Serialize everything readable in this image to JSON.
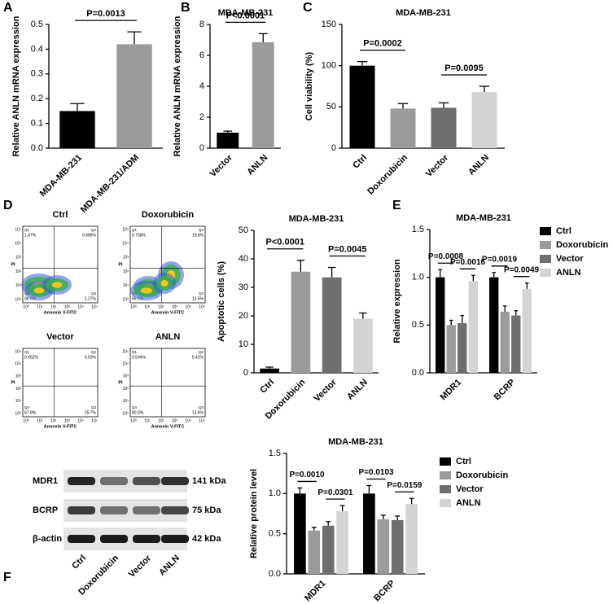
{
  "chart_data": [
    {
      "type": "bar",
      "panel_label": "A",
      "ylabel": "Relative ANLN mRNA expression",
      "categories": [
        "MDA-MB-231",
        "MDA-MB-231/ADM"
      ],
      "values": [
        0.15,
        0.42
      ],
      "errors": [
        0.03,
        0.05
      ],
      "colors": [
        "#000000",
        "#9b9b9b"
      ],
      "ylim": [
        0,
        0.5
      ],
      "yticks": [
        {
          "value": 0,
          "label": "0.0"
        },
        0.1,
        0.2,
        0.3,
        0.4,
        0.5
      ],
      "annotations": [
        {
          "text": "P=0.0013",
          "between": [
            0,
            1
          ]
        }
      ]
    },
    {
      "type": "bar",
      "panel_label": "B",
      "title": "MDA-MB-231",
      "ylabel": "Relative ANLN mRNA expression",
      "categories": [
        "Vector",
        "ANLN"
      ],
      "values": [
        1.0,
        6.85
      ],
      "errors": [
        0.1,
        0.55
      ],
      "colors": [
        "#000000",
        "#9b9b9b"
      ],
      "ylim": [
        0,
        8
      ],
      "yticks": [
        0,
        2,
        4,
        6,
        8
      ],
      "annotations": [
        {
          "text": "P<0.0001",
          "between": [
            0,
            1
          ]
        }
      ]
    },
    {
      "type": "bar",
      "panel_label": "C",
      "title": "MDA-MB-231",
      "ylabel": "Cell viability (%)",
      "categories": [
        "Ctrl",
        "Doxorubicin",
        "Vector",
        "ANLN"
      ],
      "values": [
        100,
        48,
        49,
        68
      ],
      "errors": [
        5,
        6,
        6,
        7
      ],
      "colors": [
        "#000000",
        "#9b9b9b",
        "#6e6e6e",
        "#d4d4d4"
      ],
      "ylim": [
        0,
        150
      ],
      "yticks": [
        0,
        50,
        100,
        150
      ],
      "annotations": [
        {
          "text": "P=0.0002",
          "between": [
            0,
            1
          ]
        },
        {
          "text": "P=0.0095",
          "between": [
            2,
            3
          ]
        }
      ]
    },
    {
      "type": "bar",
      "panel_label": "D",
      "title": "MDA-MB-231",
      "ylabel": "Apoptotic cells (%)",
      "categories": [
        "Ctrl",
        "Doxorubicin",
        "Vector",
        "ANLN"
      ],
      "values": [
        1.5,
        35.5,
        33.5,
        19
      ],
      "errors": [
        0.5,
        4,
        3.5,
        2
      ],
      "colors": [
        "#000000",
        "#9b9b9b",
        "#6e6e6e",
        "#d4d4d4"
      ],
      "ylim": [
        0,
        50
      ],
      "yticks": [
        0,
        10,
        20,
        30,
        40,
        50
      ],
      "annotations": [
        {
          "text": "P<0.0001",
          "between": [
            0,
            1
          ]
        },
        {
          "text": "P=0.0045",
          "between": [
            2,
            3
          ]
        }
      ]
    },
    {
      "type": "grouped-bar",
      "panel_label": "E",
      "title": "MDA-MB-231",
      "ylabel": "Relative expression",
      "categories": [
        "MDR1",
        "BCRP"
      ],
      "series": [
        {
          "name": "Ctrl",
          "color": "#000000",
          "values": [
            1.0,
            1.0
          ],
          "errors": [
            0.08,
            0.05
          ]
        },
        {
          "name": "Doxorubicin",
          "color": "#9b9b9b",
          "values": [
            0.5,
            0.64
          ],
          "errors": [
            0.05,
            0.06
          ]
        },
        {
          "name": "Vector",
          "color": "#6e6e6e",
          "values": [
            0.52,
            0.6
          ],
          "errors": [
            0.08,
            0.05
          ]
        },
        {
          "name": "ANLN",
          "color": "#d4d4d4",
          "values": [
            0.96,
            0.88
          ],
          "errors": [
            0.06,
            0.06
          ]
        }
      ],
      "ylim": [
        0,
        1.5
      ],
      "yticks": [
        {
          "value": 0,
          "label": "0.0"
        },
        0.5,
        {
          "value": 1,
          "label": "1.0"
        },
        1.5
      ],
      "annotations": [
        {
          "text": "P=0.0008",
          "category": 0,
          "between": [
            0,
            1
          ]
        },
        {
          "text": "P=0.0016",
          "category": 0,
          "between": [
            2,
            3
          ]
        },
        {
          "text": "P=0.0019",
          "category": 1,
          "between": [
            0,
            1
          ]
        },
        {
          "text": "P=0.0049",
          "category": 1,
          "between": [
            2,
            3
          ]
        }
      ]
    },
    {
      "type": "grouped-bar",
      "panel_label": "F",
      "title": "MDA-MB-231",
      "ylabel": "Relative protein level",
      "categories": [
        "MDR1",
        "BCRP"
      ],
      "series": [
        {
          "name": "Ctrl",
          "color": "#000000",
          "values": [
            1.0,
            1.0
          ],
          "errors": [
            0.07,
            0.1
          ]
        },
        {
          "name": "Doxorubicin",
          "color": "#9b9b9b",
          "values": [
            0.54,
            0.68
          ],
          "errors": [
            0.04,
            0.05
          ]
        },
        {
          "name": "Vector",
          "color": "#6e6e6e",
          "values": [
            0.6,
            0.67
          ],
          "errors": [
            0.05,
            0.05
          ]
        },
        {
          "name": "ANLN",
          "color": "#d4d4d4",
          "values": [
            0.78,
            0.87
          ],
          "errors": [
            0.07,
            0.07
          ]
        }
      ],
      "ylim": [
        0,
        1.5
      ],
      "yticks": [
        {
          "value": 0,
          "label": "0.0"
        },
        0.5,
        {
          "value": 1,
          "label": "1.0"
        },
        1.5
      ],
      "annotations": [
        {
          "text": "P=0.0010",
          "category": 0,
          "between": [
            0,
            1
          ]
        },
        {
          "text": "P=0.0301",
          "category": 0,
          "between": [
            2,
            3
          ]
        },
        {
          "text": "P=0.0103",
          "category": 1,
          "between": [
            0,
            1
          ]
        },
        {
          "text": "P=0.0159",
          "category": 1,
          "between": [
            2,
            3
          ]
        }
      ]
    }
  ],
  "flow_cytometry": {
    "xlabel": "Annexin V-FITC",
    "ylabel": "PI",
    "ticks": [
      "10⁰",
      "10¹",
      "10²",
      "10³",
      "10⁴",
      "10⁵"
    ],
    "quadrants": [
      "Q1",
      "Q2",
      "Q3",
      "Q4"
    ],
    "plots": [
      {
        "name": "Ctrl",
        "percentages": [
          "1.47%",
          "0.686%",
          "1.27%",
          "96.6%"
        ]
      },
      {
        "name": "Doxorubicin",
        "percentages": [
          "0.758%",
          "19.6%",
          "13.5%",
          "66.1%"
        ]
      },
      {
        "name": "Vector",
        "percentages": [
          "0.452%",
          "6.03%",
          "25.7%",
          "67.8%"
        ]
      },
      {
        "name": "ANLN",
        "percentages": [
          "0.594%",
          "5.41%",
          "13.6%",
          "80.3%"
        ]
      }
    ]
  },
  "western_blot": {
    "proteins": [
      "MDR1",
      "BCRP",
      "β-actin"
    ],
    "sizes": [
      "141 kDa",
      "75 kDa",
      "42 kDa"
    ],
    "lanes": [
      "Ctrl",
      "Doxorubicin",
      "Vector",
      "ANLN"
    ]
  }
}
